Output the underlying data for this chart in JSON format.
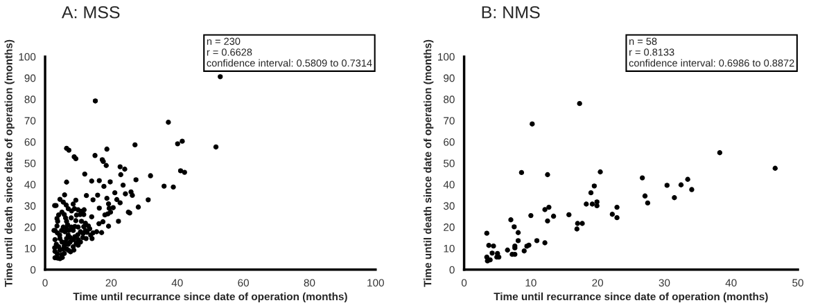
{
  "chart_data": [
    {
      "type": "scatter",
      "title": "A: MSS",
      "xlabel": "Time until recurrance since date of operation (months)",
      "ylabel": "Time until death since date of operation (months)",
      "annotations": [
        "n = 230\nr = 0.6628\nconfidence interval: 0.5809 to 0.7314"
      ],
      "xlim": [
        0,
        100
      ],
      "xticks": [
        0,
        20,
        40,
        60,
        80,
        100
      ],
      "ylim": [
        0,
        100
      ],
      "yticks": [
        0,
        10,
        20,
        30,
        40,
        50,
        60,
        70,
        80,
        90,
        100
      ],
      "grid": false,
      "marker": "circle",
      "series": [
        {
          "color": "#000000",
          "x": [
            53.0,
            15.2,
            37.3,
            40.1,
            41.5,
            51.7,
            27.2,
            6.5,
            7.2,
            8.8,
            9.3,
            15.1,
            18.7,
            17.3,
            17.6,
            18.5,
            22.7,
            24.1,
            22.9,
            12.0,
            31.9,
            41.0,
            42.2,
            36.0,
            38.8,
            6.5,
            14.1,
            16.4,
            19.7,
            17.8,
            27.5,
            23.6,
            21.1,
            26.0,
            24.3,
            26.4,
            15.9,
            12.5,
            14.5,
            18.7,
            21.7,
            22.7,
            31.2,
            19.2,
            28.2,
            16.4,
            20.6,
            19.4,
            19.8,
            19.0,
            18.1,
            25.2,
            25.6,
            22.2,
            17.5,
            16.3,
            19.2,
            15.6,
            17.1,
            14.1,
            14.5,
            14.2,
            2.9,
            3.3,
            5.9,
            4.5,
            5.5,
            6.4,
            8.5,
            9.3,
            7.0,
            8.0,
            8.9,
            10.0,
            11.0,
            11.7,
            11.8,
            10.6,
            9.5,
            7.9,
            9.3,
            11.0,
            12.2,
            13.1,
            13.5,
            12.7,
            11.5,
            10.7,
            9.9,
            9.0,
            8.6,
            10.0,
            10.7,
            10.0,
            9.4,
            8.5,
            8.7,
            7.7,
            7.1,
            6.5,
            5.8,
            5.1,
            4.5,
            4.4,
            3.7,
            3.0,
            2.7,
            3.6,
            3.8,
            3.6,
            4.1,
            5.1,
            5.8,
            6.2,
            6.5,
            6.8,
            6.4,
            6.0,
            7.0,
            6.5,
            6.2,
            7.0,
            7.6,
            7.6,
            7.2,
            7.9,
            5.5,
            5.0,
            3.0,
            3.4,
            2.9,
            3.0,
            3.7,
            3.0,
            3.8,
            4.5,
            5.2,
            5.0,
            5.8,
            4.5,
            5.5,
            4.1,
            13.8,
            12.4,
            11.4,
            9.0,
            10.0,
            8.5,
            11.7,
            12.2
          ],
          "values": [
            90.6,
            79.2,
            69.2,
            59.1,
            60.3,
            57.6,
            58.6,
            57.0,
            56.1,
            53.0,
            52.1,
            53.6,
            56.6,
            51.6,
            50.8,
            48.9,
            48.3,
            47.2,
            44.6,
            44.9,
            44.1,
            46.4,
            45.7,
            39.2,
            38.8,
            41.1,
            41.6,
            41.8,
            41.2,
            39.1,
            42.2,
            39.7,
            36.1,
            36.5,
            35.6,
            34.9,
            35.0,
            34.8,
            32.8,
            33.5,
            32.9,
            31.4,
            32.8,
            30.9,
            29.4,
            28.9,
            29.1,
            28.8,
            27.0,
            26.2,
            25.7,
            27.0,
            26.6,
            22.7,
            22.5,
            21.6,
            20.4,
            17.8,
            17.4,
            24.8,
            17.3,
            14.6,
            30.1,
            30.1,
            35.1,
            33.0,
            31.7,
            30.3,
            30.8,
            32.6,
            28.6,
            27.6,
            28.6,
            28.1,
            27.4,
            25.9,
            28.1,
            25.9,
            25.6,
            24.3,
            23.0,
            22.7,
            21.8,
            20.5,
            19.2,
            17.5,
            17.0,
            17.8,
            16.4,
            15.5,
            14.1,
            14.1,
            13.0,
            11.5,
            12.4,
            10.8,
            9.2,
            8.4,
            9.1,
            9.7,
            11.2,
            13.0,
            14.6,
            16.2,
            17.3,
            18.4,
            18.4,
            20.5,
            22.7,
            24.0,
            25.7,
            27.0,
            25.9,
            24.3,
            22.7,
            21.1,
            19.5,
            17.8,
            16.2,
            14.6,
            13.0,
            11.9,
            13.0,
            15.1,
            18.4,
            20.0,
            20.0,
            18.4,
            14.1,
            11.9,
            10.3,
            8.6,
            7.4,
            5.6,
            5.4,
            5.2,
            5.7,
            7.0,
            7.6,
            9.2,
            9.7,
            10.8,
            16.2,
            14.6,
            15.1,
            20.3,
            20.0,
            18.4,
            20.2,
            18.4
          ]
        }
      ]
    },
    {
      "type": "scatter",
      "title": "B: NMS",
      "xlabel": "Time until recurrance since date of operation (months)",
      "ylabel": "Time until death since date of operation (months)",
      "annotations": [
        "n = 58\nr = 0.8133\nconfidence interval: 0.6986 to 0.8872"
      ],
      "xlim": [
        0,
        50
      ],
      "xticks": [
        0,
        10,
        20,
        30,
        40,
        50
      ],
      "ylim": [
        0,
        100
      ],
      "yticks": [
        0,
        10,
        20,
        30,
        40,
        50,
        60,
        70,
        80,
        90,
        100
      ],
      "grid": false,
      "marker": "circle",
      "series": [
        {
          "color": "#000000",
          "x": [
            3.4,
            3.7,
            4.4,
            3.4,
            3.5,
            3.9,
            4.2,
            5.0,
            4.9,
            5.2,
            6.5,
            7.0,
            7.5,
            7.2,
            7.6,
            7.6,
            7.6,
            8.1,
            8.1,
            8.6,
            9.0,
            9.4,
            9.7,
            10.0,
            10.2,
            10.9,
            12.1,
            12.1,
            12.5,
            12.5,
            12.7,
            13.4,
            15.7,
            16.9,
            17.0,
            17.3,
            17.7,
            18.3,
            19.0,
            19.2,
            19.5,
            19.9,
            19.9,
            20.4,
            22.2,
            22.9,
            22.9,
            26.7,
            27.1,
            27.5,
            30.4,
            31.5,
            32.5,
            33.5,
            34.1,
            38.3,
            46.6
          ],
          "values": [
            17.1,
            11.4,
            11.1,
            5.9,
            4.1,
            4.6,
            7.8,
            7.6,
            5.9,
            5.9,
            9.2,
            23.4,
            20.1,
            7.2,
            7.2,
            10.2,
            11.1,
            17.4,
            13.6,
            45.6,
            8.8,
            11.0,
            11.5,
            25.4,
            68.4,
            13.6,
            28.2,
            12.6,
            44.6,
            22.9,
            29.3,
            25.1,
            25.8,
            19.1,
            21.7,
            78.0,
            21.7,
            30.8,
            36.1,
            30.8,
            39.3,
            31.8,
            30.0,
            45.9,
            26.0,
            29.3,
            24.4,
            43.1,
            34.6,
            31.3,
            39.6,
            33.8,
            39.8,
            42.4,
            37.6,
            54.9,
            47.6
          ]
        }
      ]
    }
  ]
}
